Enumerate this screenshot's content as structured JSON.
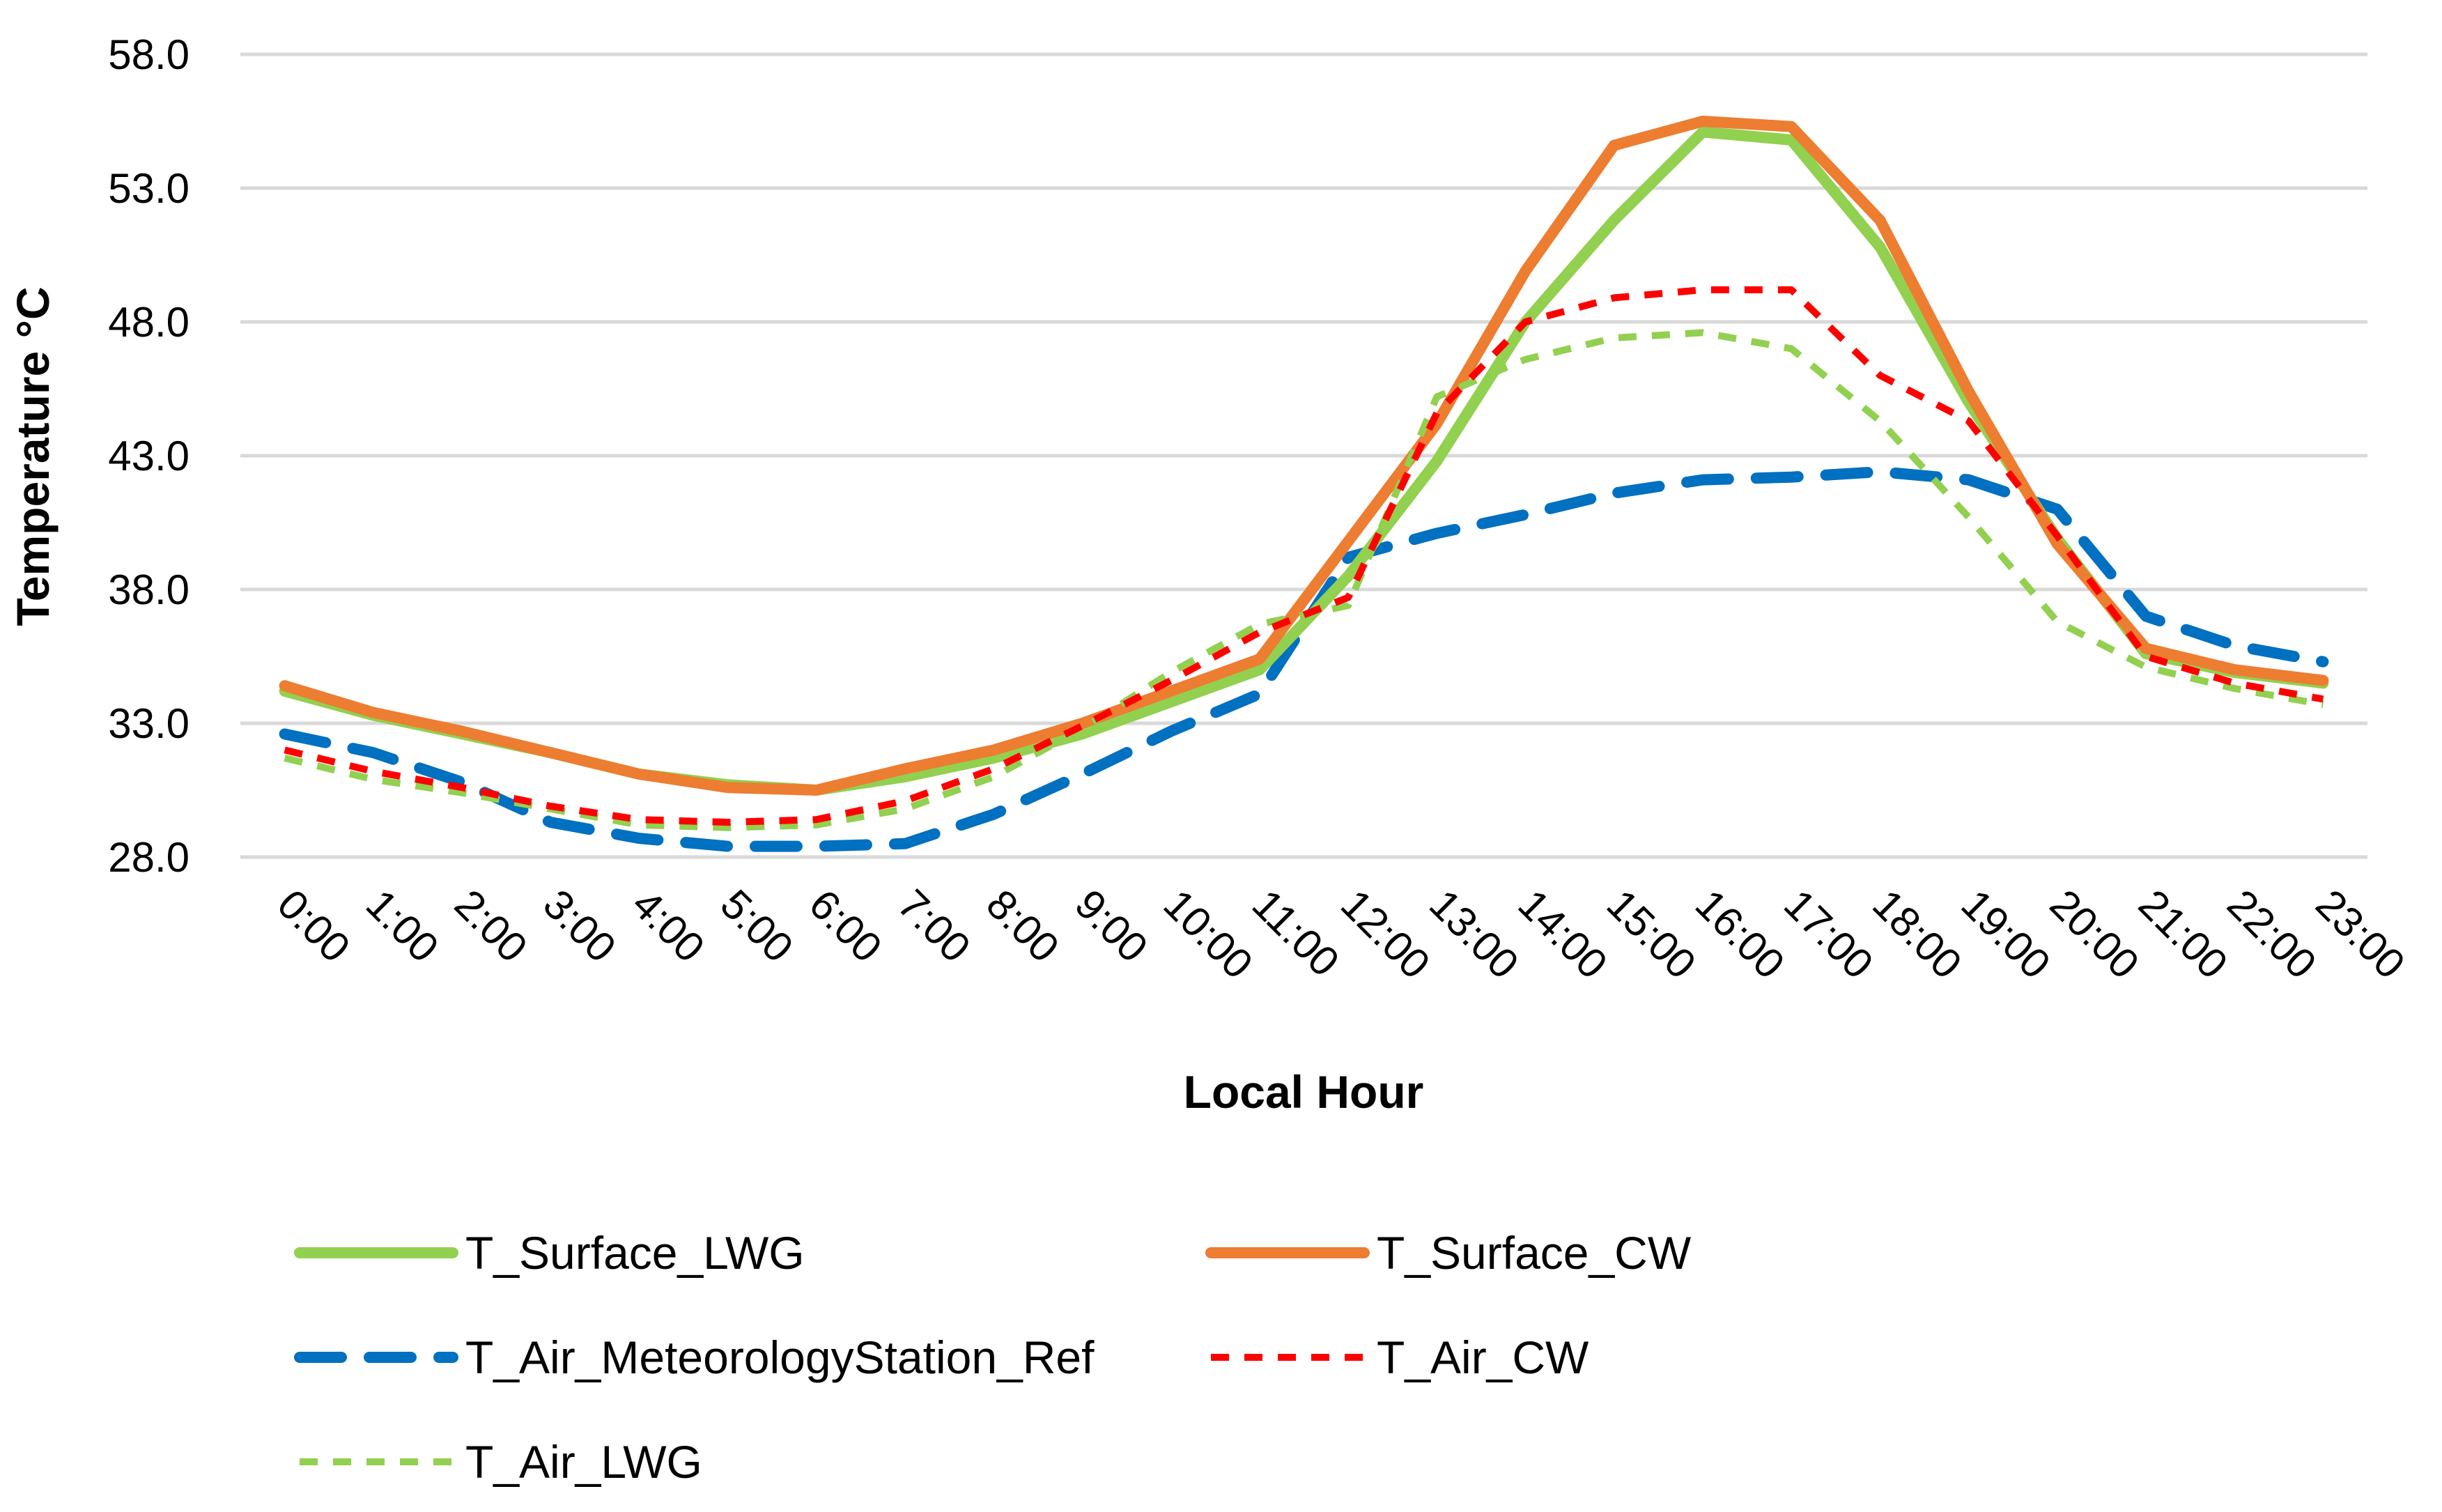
{
  "chart_data": {
    "type": "line",
    "title": "",
    "xlabel": "Local Hour",
    "ylabel": "Temperature °C",
    "ylim": [
      28.0,
      58.0
    ],
    "yticks": [
      "28.0",
      "33.0",
      "38.0",
      "43.0",
      "48.0",
      "53.0",
      "58.0"
    ],
    "categories": [
      "0:00",
      "1:00",
      "2:00",
      "3:00",
      "4:00",
      "5:00",
      "6:00",
      "7:00",
      "8:00",
      "9:00",
      "10:00",
      "11:00",
      "12:00",
      "13:00",
      "14:00",
      "15:00",
      "16:00",
      "17:00",
      "18:00",
      "19:00",
      "20:00",
      "21:00",
      "22:00",
      "23:00"
    ],
    "grid": true,
    "legend_position": "bottom",
    "series": [
      {
        "name": "T_Surface_LWG",
        "color": "#92D050",
        "style": "solid",
        "values": [
          34.2,
          33.3,
          32.6,
          31.9,
          31.1,
          30.7,
          30.5,
          31.0,
          31.7,
          32.6,
          33.8,
          35.0,
          38.5,
          42.8,
          48.0,
          51.8,
          55.1,
          54.8,
          50.8,
          45.0,
          39.9,
          35.6,
          34.9,
          34.5
        ]
      },
      {
        "name": "T_Surface_CW",
        "color": "#ED7D31",
        "style": "solid",
        "values": [
          34.4,
          33.4,
          32.7,
          31.9,
          31.1,
          30.6,
          30.5,
          31.3,
          32.0,
          33.0,
          34.2,
          35.4,
          39.8,
          44.2,
          49.9,
          54.6,
          55.5,
          55.3,
          51.8,
          45.4,
          39.7,
          35.8,
          35.0,
          34.6
        ]
      },
      {
        "name": "T_Air_MeteorologyStation_Ref",
        "color": "#0070C0",
        "style": "longdash",
        "values": [
          32.6,
          31.9,
          30.8,
          29.3,
          28.7,
          28.4,
          28.4,
          28.5,
          29.6,
          31.1,
          32.7,
          34.1,
          39.2,
          40.1,
          40.8,
          41.6,
          42.1,
          42.2,
          42.4,
          42.1,
          41.0,
          37.0,
          35.9,
          35.3
        ]
      },
      {
        "name": "T_Air_CW",
        "color": "#FF0000",
        "style": "shortdash",
        "values": [
          32.0,
          31.2,
          30.6,
          29.9,
          29.4,
          29.3,
          29.4,
          30.1,
          31.3,
          32.9,
          34.6,
          36.4,
          37.7,
          44.6,
          48.0,
          48.9,
          49.2,
          49.2,
          46.0,
          44.3,
          40.0,
          35.5,
          34.5,
          33.9
        ]
      },
      {
        "name": "T_Air_LWG",
        "color": "#92D050",
        "style": "shortdash",
        "values": [
          31.7,
          30.9,
          30.4,
          29.8,
          29.2,
          29.1,
          29.2,
          29.8,
          31.0,
          32.8,
          34.9,
          36.7,
          37.4,
          45.2,
          46.6,
          47.4,
          47.6,
          47.0,
          44.3,
          40.7,
          36.8,
          35.1,
          34.3,
          33.7
        ]
      }
    ]
  }
}
